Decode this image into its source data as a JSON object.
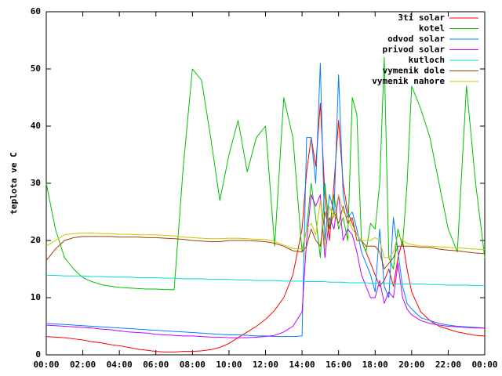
{
  "chart_data": {
    "type": "line",
    "ylabel": "teplota ve C",
    "xlim": [
      0,
      24
    ],
    "xticks": [
      {
        "value": 0,
        "label": "00:00"
      },
      {
        "value": 2,
        "label": "02:00"
      },
      {
        "value": 4,
        "label": "04:00"
      },
      {
        "value": 6,
        "label": "06:00"
      },
      {
        "value": 8,
        "label": "08:00"
      },
      {
        "value": 10,
        "label": "10:00"
      },
      {
        "value": 12,
        "label": "12:00"
      },
      {
        "value": 14,
        "label": "14:00"
      },
      {
        "value": 16,
        "label": "16:00"
      },
      {
        "value": 18,
        "label": "18:00"
      },
      {
        "value": 20,
        "label": "20:00"
      },
      {
        "value": 22,
        "label": "22:00"
      },
      {
        "value": 24,
        "label": "00:00"
      }
    ],
    "ylim": [
      0,
      60
    ],
    "yticks": [
      0,
      10,
      20,
      30,
      40,
      50,
      60
    ],
    "legend": "top-right",
    "x": [
      0,
      0.5,
      1,
      1.5,
      2,
      2.5,
      3,
      3.5,
      4,
      4.5,
      5,
      5.5,
      6,
      6.5,
      7,
      7.5,
      8,
      8.5,
      9,
      9.5,
      10,
      10.5,
      11,
      11.5,
      12,
      12.5,
      13,
      13.5,
      14,
      14.25,
      14.5,
      14.75,
      15,
      15.25,
      15.5,
      15.75,
      16,
      16.25,
      16.5,
      16.75,
      17,
      17.25,
      17.5,
      17.75,
      18,
      18.25,
      18.5,
      18.75,
      19,
      19.25,
      19.5,
      19.75,
      20,
      20.5,
      21,
      21.5,
      22,
      22.5,
      23,
      23.5,
      24
    ],
    "series": [
      {
        "name": "3ti solar",
        "color": "#ff0000",
        "values": [
          3.2,
          3.1,
          3.0,
          2.8,
          2.6,
          2.3,
          2.1,
          1.8,
          1.6,
          1.3,
          1.0,
          0.8,
          0.6,
          0.5,
          0.5,
          0.6,
          0.6,
          0.7,
          0.9,
          1.3,
          2.0,
          3.0,
          4.0,
          5.0,
          6.2,
          7.8,
          10,
          14,
          22,
          32,
          38,
          33,
          44,
          28,
          20,
          30,
          41,
          30,
          25,
          23,
          21,
          20,
          18,
          16,
          14,
          12,
          13,
          15,
          12,
          17,
          20,
          15,
          11,
          7.5,
          6,
          5,
          4.5,
          4,
          3.7,
          3.4,
          3.3
        ]
      },
      {
        "name": "kotel",
        "color": "#00c000",
        "values": [
          30,
          22,
          17,
          15,
          13.5,
          12.8,
          12.3,
          12,
          11.8,
          11.7,
          11.6,
          11.5,
          11.5,
          11.4,
          11.4,
          33,
          50,
          48,
          38,
          27,
          35,
          41,
          32,
          38,
          40,
          19,
          45,
          38,
          18,
          22,
          30,
          24,
          17,
          30,
          22,
          28,
          22,
          24,
          20,
          45,
          42,
          20,
          18,
          23,
          22,
          30,
          52,
          17,
          15,
          22,
          19,
          30,
          47,
          43,
          38,
          30,
          22,
          18,
          47,
          30,
          17
        ]
      },
      {
        "name": "odvod solar",
        "color": "#0080ff",
        "values": [
          5.5,
          5.4,
          5.3,
          5.2,
          5.1,
          5.0,
          4.9,
          4.8,
          4.7,
          4.6,
          4.5,
          4.4,
          4.3,
          4.2,
          4.1,
          4.0,
          3.9,
          3.8,
          3.7,
          3.6,
          3.5,
          3.5,
          3.4,
          3.3,
          3.3,
          3.2,
          3.2,
          3.2,
          3.3,
          38,
          38,
          30,
          51,
          20,
          28,
          25,
          49,
          28,
          24,
          25,
          22,
          18,
          16,
          14,
          11,
          22,
          12,
          10,
          24,
          18,
          12,
          9,
          8,
          6.5,
          6,
          5.5,
          5.2,
          5,
          4.9,
          4.8,
          4.7
        ]
      },
      {
        "name": "privod solar",
        "color": "#c000ff",
        "values": [
          5.2,
          5.1,
          5.0,
          4.9,
          4.8,
          4.7,
          4.5,
          4.4,
          4.2,
          4.0,
          3.9,
          3.8,
          3.6,
          3.5,
          3.4,
          3.3,
          3.3,
          3.2,
          3.1,
          3.1,
          3.0,
          3.0,
          3.0,
          3.1,
          3.2,
          3.4,
          4.0,
          5.0,
          7.5,
          20,
          28,
          26,
          28,
          17,
          24,
          22,
          28,
          20,
          22,
          21,
          18,
          14,
          12,
          10,
          10,
          13,
          9,
          11,
          10,
          16,
          10,
          8,
          7,
          6,
          5.5,
          5.2,
          5,
          4.9,
          4.8,
          4.7,
          4.7
        ]
      },
      {
        "name": "kutloch",
        "color": "#00dddd",
        "values": [
          13.9,
          13.9,
          13.8,
          13.8,
          13.8,
          13.7,
          13.7,
          13.6,
          13.6,
          13.6,
          13.5,
          13.5,
          13.5,
          13.4,
          13.4,
          13.3,
          13.3,
          13.3,
          13.2,
          13.2,
          13.2,
          13.1,
          13.1,
          13.0,
          13.0,
          13.0,
          12.9,
          12.9,
          12.9,
          12.8,
          12.8,
          12.8,
          12.8,
          12.8,
          12.7,
          12.7,
          12.7,
          12.7,
          12.6,
          12.6,
          12.6,
          12.6,
          12.6,
          12.5,
          12.5,
          12.5,
          12.5,
          12.5,
          12.4,
          12.4,
          12.4,
          12.4,
          12.4,
          12.4,
          12.3,
          12.3,
          12.2,
          12.2,
          12.2,
          12.1,
          12.1
        ]
      },
      {
        "name": "vymenik dole",
        "color": "#a04000",
        "values": [
          16.5,
          18.5,
          20,
          20.5,
          20.7,
          20.7,
          20.7,
          20.7,
          20.6,
          20.6,
          20.6,
          20.5,
          20.5,
          20.4,
          20.3,
          20.2,
          20.0,
          19.9,
          19.8,
          19.8,
          20.0,
          20.0,
          20.0,
          19.9,
          19.8,
          19.5,
          19.0,
          18.2,
          18.0,
          19,
          22,
          20,
          19,
          25,
          22,
          25,
          23,
          26,
          23,
          24,
          20,
          20,
          19,
          19,
          19,
          18,
          15,
          16,
          17,
          19,
          19,
          19,
          19,
          18.8,
          18.8,
          18.5,
          18.3,
          18.2,
          18,
          17.8,
          17.7
        ]
      },
      {
        "name": "vymenik nahore",
        "color": "#c8c800",
        "values": [
          19,
          20,
          21,
          21.2,
          21.3,
          21.3,
          21.2,
          21.2,
          21.1,
          21.1,
          21.0,
          21.0,
          21.0,
          20.9,
          20.8,
          20.6,
          20.5,
          20.4,
          20.3,
          20.3,
          20.4,
          20.4,
          20.3,
          20.2,
          20.2,
          19.8,
          19.2,
          18.6,
          18.5,
          22,
          23,
          21,
          27,
          19,
          26,
          24,
          28,
          25,
          24,
          22,
          21,
          20,
          20,
          20,
          20.5,
          20,
          17,
          17,
          18,
          21,
          20,
          19.5,
          19.3,
          19,
          19,
          18.9,
          18.8,
          18.7,
          18.6,
          18.5,
          18.4
        ]
      }
    ]
  }
}
